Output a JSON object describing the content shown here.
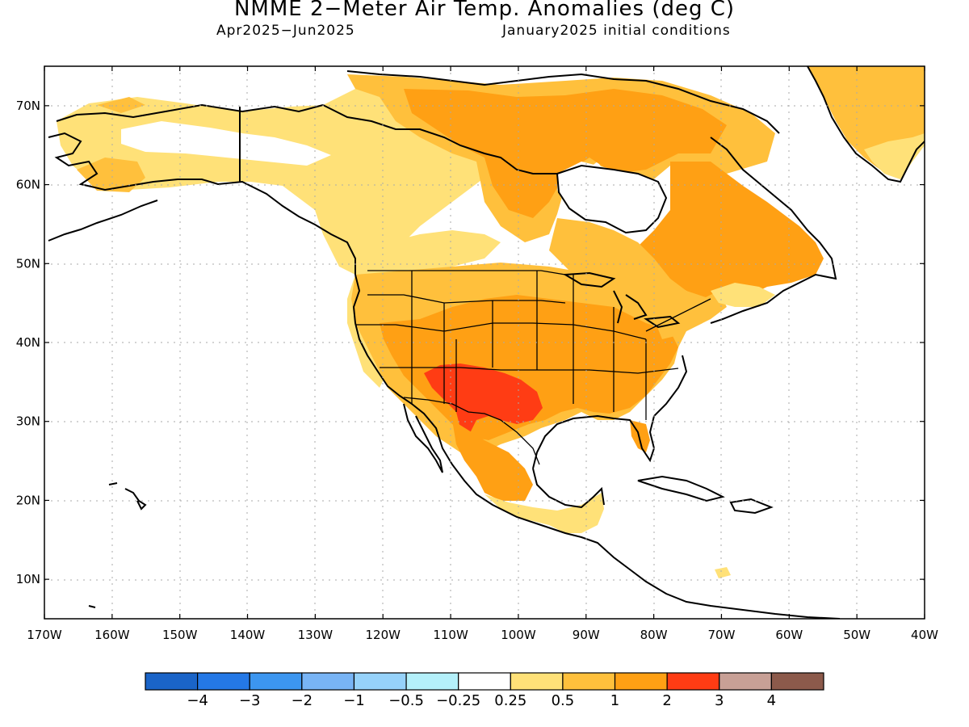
{
  "map": {
    "title": "NMME 2−Meter Air Temp. Anomalies (deg C)",
    "period": "Apr2025−Jun2025",
    "init": "January2025 initial conditions",
    "lat_labels": [
      "70N",
      "60N",
      "50N",
      "40N",
      "30N",
      "20N",
      "10N"
    ],
    "lon_labels": [
      "170W",
      "160W",
      "150W",
      "140W",
      "130W",
      "120W",
      "110W",
      "100W",
      "90W",
      "80W",
      "70W",
      "60W",
      "50W",
      "40W"
    ],
    "extent": {
      "lon_min": -170,
      "lon_max": -40,
      "lat_min": 5,
      "lat_max": 75
    }
  },
  "legend": {
    "colors": [
      "#1a64c8",
      "#2478e6",
      "#3c96f0",
      "#78b4f5",
      "#96d2fa",
      "#b4f0fa",
      "#ffffff",
      "#ffe178",
      "#ffc03c",
      "#ffa014",
      "#ff3c14",
      "#c8a096",
      "#8c5a4b"
    ],
    "labels": [
      "−4",
      "−3",
      "−2",
      "−1",
      "−0.5",
      "−0.25",
      "0.25",
      "0.5",
      "1",
      "2",
      "3",
      "4"
    ]
  },
  "anomaly_colors": {
    "light": "#ffe178",
    "moderate": "#ffc03c",
    "strong": "#ffa014",
    "extreme": "#ff3c14"
  }
}
